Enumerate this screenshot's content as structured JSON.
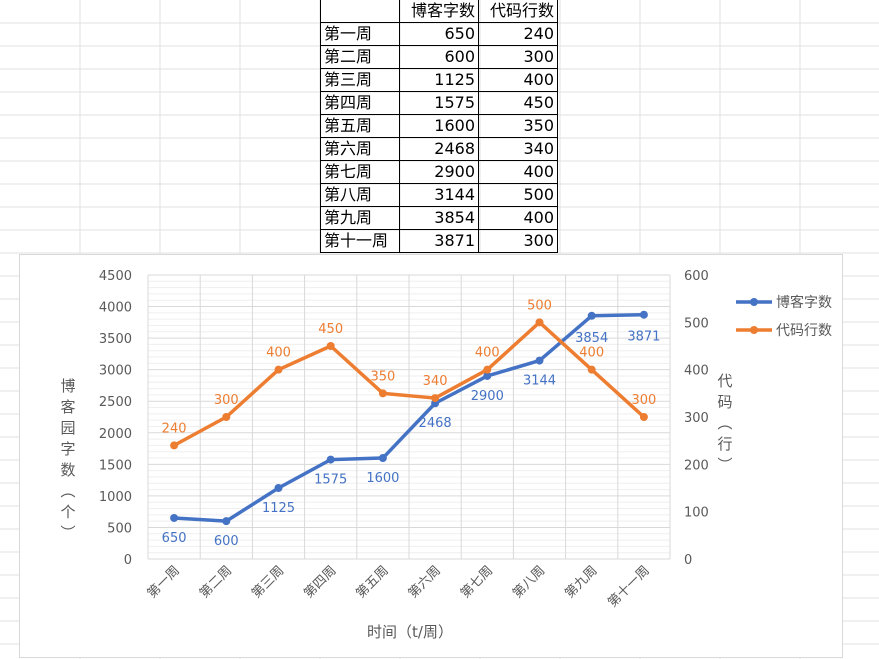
{
  "sheet": {
    "header": [
      "",
      "博客字数",
      "代码行数"
    ],
    "rows": [
      [
        "第一周",
        "650",
        "240"
      ],
      [
        "第二周",
        "600",
        "300"
      ],
      [
        "第三周",
        "1125",
        "400"
      ],
      [
        "第四周",
        "1575",
        "450"
      ],
      [
        "第五周",
        "1600",
        "350"
      ],
      [
        "第六周",
        "2468",
        "340"
      ],
      [
        "第七周",
        "2900",
        "400"
      ],
      [
        "第八周",
        "3144",
        "500"
      ],
      [
        "第九周",
        "3854",
        "400"
      ],
      [
        "第十一周",
        "3871",
        "300"
      ]
    ]
  },
  "chart_data": {
    "type": "line",
    "categories": [
      "第一周",
      "第二周",
      "第三周",
      "第四周",
      "第五周",
      "第六周",
      "第七周",
      "第八周",
      "第九周",
      "第十一周"
    ],
    "series": [
      {
        "name": "博客字数",
        "axis": "left",
        "color": "#4472c4",
        "values": [
          650,
          600,
          1125,
          1575,
          1600,
          2468,
          2900,
          3144,
          3854,
          3871
        ]
      },
      {
        "name": "代码行数",
        "axis": "right",
        "color": "#ed7d31",
        "values": [
          240,
          300,
          400,
          450,
          350,
          340,
          400,
          500,
          400,
          300
        ]
      }
    ],
    "xlabel": "时间（t/周）",
    "ylabel": "博客园字数（个）",
    "y2label": "代码（行）",
    "ylim": [
      0,
      4500
    ],
    "yticks": [
      0,
      500,
      1000,
      1500,
      2000,
      2500,
      3000,
      3500,
      4000,
      4500
    ],
    "y2lim": [
      0,
      600
    ],
    "y2ticks": [
      0,
      100,
      200,
      300,
      400,
      500,
      600
    ],
    "grid": true,
    "legend": "right"
  }
}
